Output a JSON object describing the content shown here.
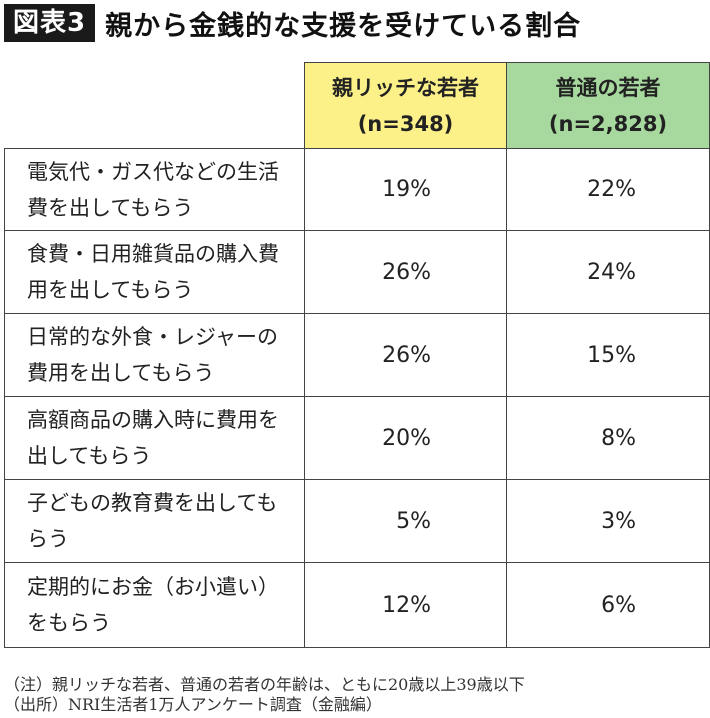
{
  "header": {
    "badge": "図表3",
    "title": "親から金銭的な支援を受けている割合"
  },
  "table": {
    "columns": [
      {
        "line1": "親リッチな若者",
        "line2": "(n=348)",
        "color": "#fcf089"
      },
      {
        "line1": "普通の若者",
        "line2": "(n=2,828)",
        "color": "#a7d99f"
      }
    ],
    "rows": [
      {
        "line1": "電気代・ガス代などの生活",
        "line2": "費を出してもらう",
        "rich": "19%",
        "normal": "22%"
      },
      {
        "line1": "食費・日用雑貨品の購入費",
        "line2": "用を出してもらう",
        "rich": "26%",
        "normal": "24%"
      },
      {
        "line1": "日常的な外食・レジャーの",
        "line2": "費用を出してもらう",
        "rich": "26%",
        "normal": "15%"
      },
      {
        "line1": "高額商品の購入時に費用を",
        "line2": "出してもらう",
        "rich": "20%",
        "normal": "8%"
      },
      {
        "line1": "子どもの教育費を出しても",
        "line2": "らう",
        "rich": "5%",
        "normal": "3%"
      },
      {
        "line1": "定期的にお金（お小遣い）",
        "line2": "をもらう",
        "rich": "12%",
        "normal": "6%"
      }
    ]
  },
  "notes": {
    "note": "（注）親リッチな若者、普通の若者の年齢は、ともに20歳以上39歳以下",
    "source": "（出所）NRI生活者1万人アンケート調査（金融編）"
  }
}
